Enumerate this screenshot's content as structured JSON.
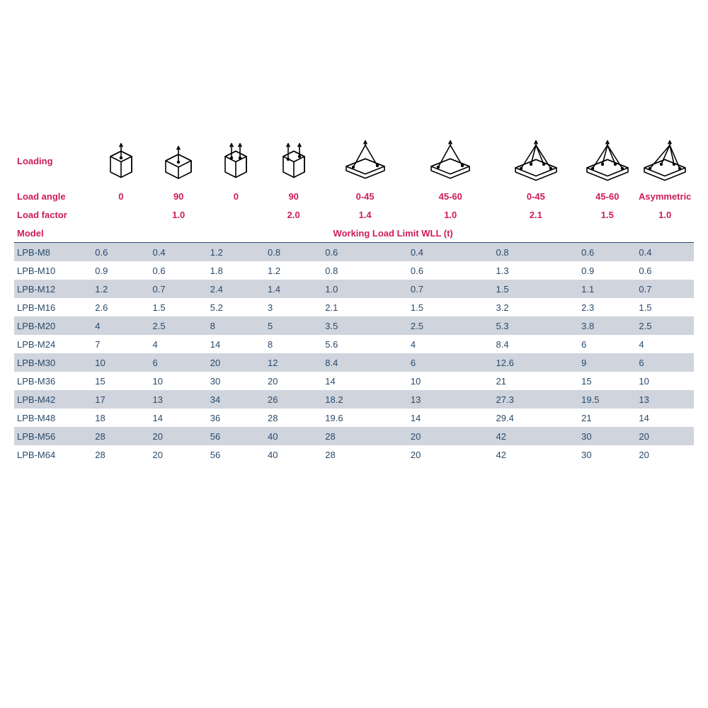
{
  "labels": {
    "loading": "Loading",
    "load_angle": "Load angle",
    "load_factor": "Load factor",
    "model": "Model",
    "wll": "Working Load Limit WLL (t)"
  },
  "columns": [
    {
      "icon": "box1up",
      "angle": "0",
      "factor": "",
      "cls": "w-s"
    },
    {
      "icon": "box1side",
      "angle": "90",
      "factor": "1.0",
      "cls": "w-s"
    },
    {
      "icon": "box2up",
      "angle": "0",
      "factor": "",
      "cls": "w-s"
    },
    {
      "icon": "box2side",
      "angle": "90",
      "factor": "2.0",
      "cls": "w-s"
    },
    {
      "icon": "flat2a",
      "angle": "0-45",
      "factor": "1.4",
      "cls": "w-m"
    },
    {
      "icon": "flat2b",
      "angle": "45-60",
      "factor": "1.0",
      "cls": "w-m"
    },
    {
      "icon": "flat4a",
      "angle": "0-45",
      "factor": "2.1",
      "cls": "w-m"
    },
    {
      "icon": "flat4b",
      "angle": "45-60",
      "factor": "1.5",
      "cls": "w-s"
    },
    {
      "icon": "asym",
      "angle": "Asymmetric",
      "factor": "1.0",
      "cls": "w-s"
    }
  ],
  "rows": [
    {
      "model": "LPB-M8",
      "v": [
        "0.6",
        "0.4",
        "1.2",
        "0.8",
        "0.6",
        "0.4",
        "0.8",
        "0.6",
        "0.4"
      ]
    },
    {
      "model": "LPB-M10",
      "v": [
        "0.9",
        "0.6",
        "1.8",
        "1.2",
        "0.8",
        "0.6",
        "1.3",
        "0.9",
        "0.6"
      ]
    },
    {
      "model": "LPB-M12",
      "v": [
        "1.2",
        "0.7",
        "2.4",
        "1.4",
        "1.0",
        "0.7",
        "1.5",
        "1.1",
        "0.7"
      ]
    },
    {
      "model": "LPB-M16",
      "v": [
        "2.6",
        "1.5",
        "5.2",
        "3",
        "2.1",
        "1.5",
        "3.2",
        "2.3",
        "1.5"
      ]
    },
    {
      "model": "LPB-M20",
      "v": [
        "4",
        "2.5",
        "8",
        "5",
        "3.5",
        "2.5",
        "5.3",
        "3.8",
        "2.5"
      ]
    },
    {
      "model": "LPB-M24",
      "v": [
        "7",
        "4",
        "14",
        "8",
        "5.6",
        "4",
        "8.4",
        "6",
        "4"
      ]
    },
    {
      "model": "LPB-M30",
      "v": [
        "10",
        "6",
        "20",
        "12",
        "8.4",
        "6",
        "12.6",
        "9",
        "6"
      ]
    },
    {
      "model": "LPB-M36",
      "v": [
        "15",
        "10",
        "30",
        "20",
        "14",
        "10",
        "21",
        "15",
        "10"
      ]
    },
    {
      "model": "LPB-M42",
      "v": [
        "17",
        "13",
        "34",
        "26",
        "18.2",
        "13",
        "27.3",
        "19.5",
        "13"
      ]
    },
    {
      "model": "LPB-M48",
      "v": [
        "18",
        "14",
        "36",
        "28",
        "19.6",
        "14",
        "29.4",
        "21",
        "14"
      ]
    },
    {
      "model": "LPB-M56",
      "v": [
        "28",
        "20",
        "56",
        "40",
        "28",
        "20",
        "42",
        "30",
        "20"
      ]
    },
    {
      "model": "LPB-M64",
      "v": [
        "28",
        "20",
        "56",
        "40",
        "28",
        "20",
        "42",
        "30",
        "20"
      ]
    }
  ],
  "style": {
    "accent_color": "#ce1b5a",
    "model_color": "#2a4a6a",
    "stripe_color": "#cfd4dd",
    "border_color": "#2a4a6a",
    "font_size": 13
  }
}
